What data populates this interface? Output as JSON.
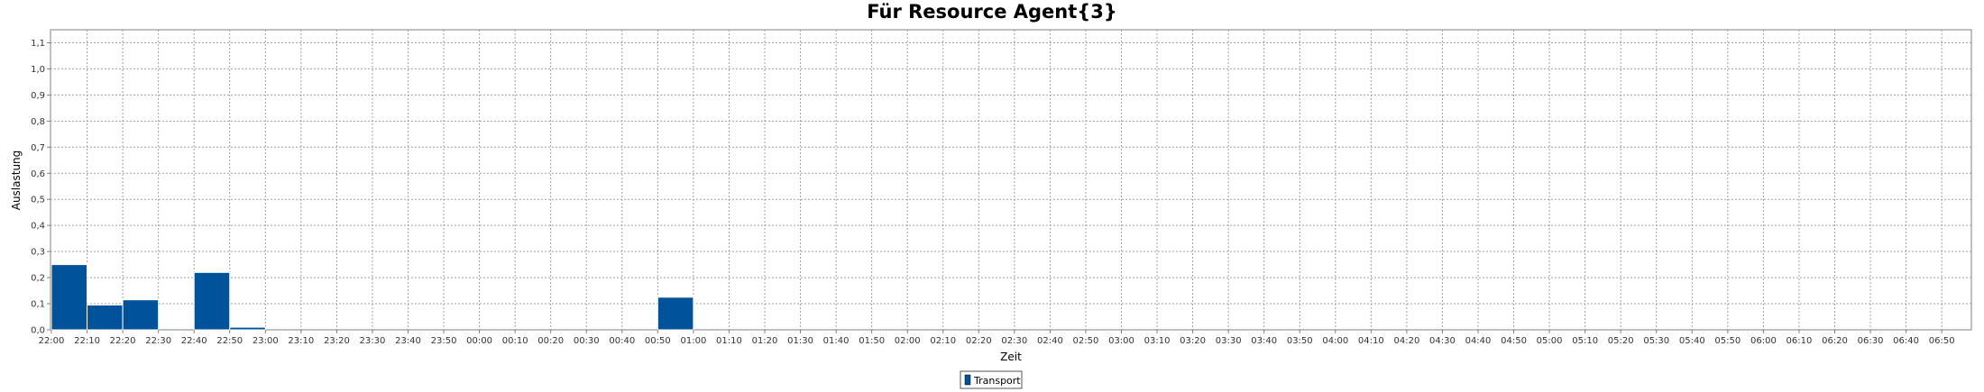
{
  "chart_data": {
    "type": "bar",
    "title": "Für Resource Agent{3}",
    "xlabel": "Zeit",
    "ylabel": "Auslastung",
    "ylim": [
      0,
      1.15
    ],
    "y_ticks": [
      "0,0",
      "0,1",
      "0,2",
      "0,3",
      "0,4",
      "0,5",
      "0,6",
      "0,7",
      "0,8",
      "0,9",
      "1,0",
      "1,1"
    ],
    "categories": [
      "22:00",
      "22:10",
      "22:20",
      "22:30",
      "22:40",
      "22:50",
      "23:00",
      "23:10",
      "23:20",
      "23:30",
      "23:40",
      "23:50",
      "00:00",
      "00:10",
      "00:20",
      "00:30",
      "00:40",
      "00:50",
      "01:00",
      "01:10",
      "01:20",
      "01:30",
      "01:40",
      "01:50",
      "02:00",
      "02:10",
      "02:20",
      "02:30",
      "02:40",
      "02:50",
      "03:00",
      "03:10",
      "03:20",
      "03:30",
      "03:40",
      "03:50",
      "04:00",
      "04:10",
      "04:20",
      "04:30",
      "04:40",
      "04:50",
      "05:00",
      "05:10",
      "05:20",
      "05:30",
      "05:40",
      "05:50",
      "06:00",
      "06:10",
      "06:20",
      "06:30",
      "06:40",
      "06:50"
    ],
    "series": [
      {
        "name": "Transport",
        "color": "#00529b",
        "values": [
          0.25,
          0.095,
          0.115,
          0,
          0.22,
          0.01,
          0,
          0,
          0,
          0,
          0,
          0,
          0,
          0,
          0,
          0,
          0,
          0.125,
          0,
          0,
          0,
          0,
          0,
          0,
          0,
          0,
          0,
          0,
          0,
          0,
          0,
          0,
          0,
          0,
          0,
          0,
          0,
          0,
          0,
          0,
          0,
          0,
          0,
          0,
          0,
          0,
          0,
          0,
          0,
          0,
          0,
          0,
          0,
          0
        ]
      }
    ],
    "grid": true,
    "legend": "bottom-center"
  }
}
